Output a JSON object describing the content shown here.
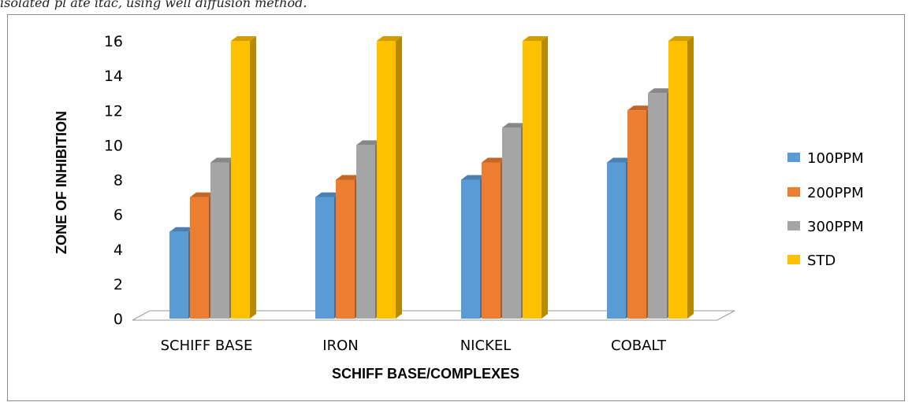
{
  "caption": "isolated pl até itac, using well diffusion method.",
  "colors": {
    "100PPM": "#5B9BD5",
    "200PPM": "#ED7D31",
    "300PPM": "#A5A5A5",
    "STD": "#FFC000"
  },
  "chart_data": {
    "type": "bar",
    "style": "3d-clustered-column",
    "title": "",
    "xlabel": "SCHIFF BASE/COMPLEXES",
    "ylabel": "ZONE OF  INHIBITION",
    "ylim": [
      0,
      16
    ],
    "yticks": [
      0,
      2,
      4,
      6,
      8,
      10,
      12,
      14,
      16
    ],
    "grid": false,
    "legend": "right",
    "categories": [
      "SCHIFF BASE",
      "IRON",
      "NICKEL",
      "COBALT"
    ],
    "series": [
      {
        "name": "100PPM",
        "values": [
          5,
          7,
          8,
          9
        ]
      },
      {
        "name": "200PPM",
        "values": [
          7,
          8,
          9,
          12
        ]
      },
      {
        "name": "300PPM",
        "values": [
          9,
          10,
          11,
          13
        ]
      },
      {
        "name": "STD",
        "values": [
          16,
          16,
          16,
          16
        ]
      }
    ]
  }
}
